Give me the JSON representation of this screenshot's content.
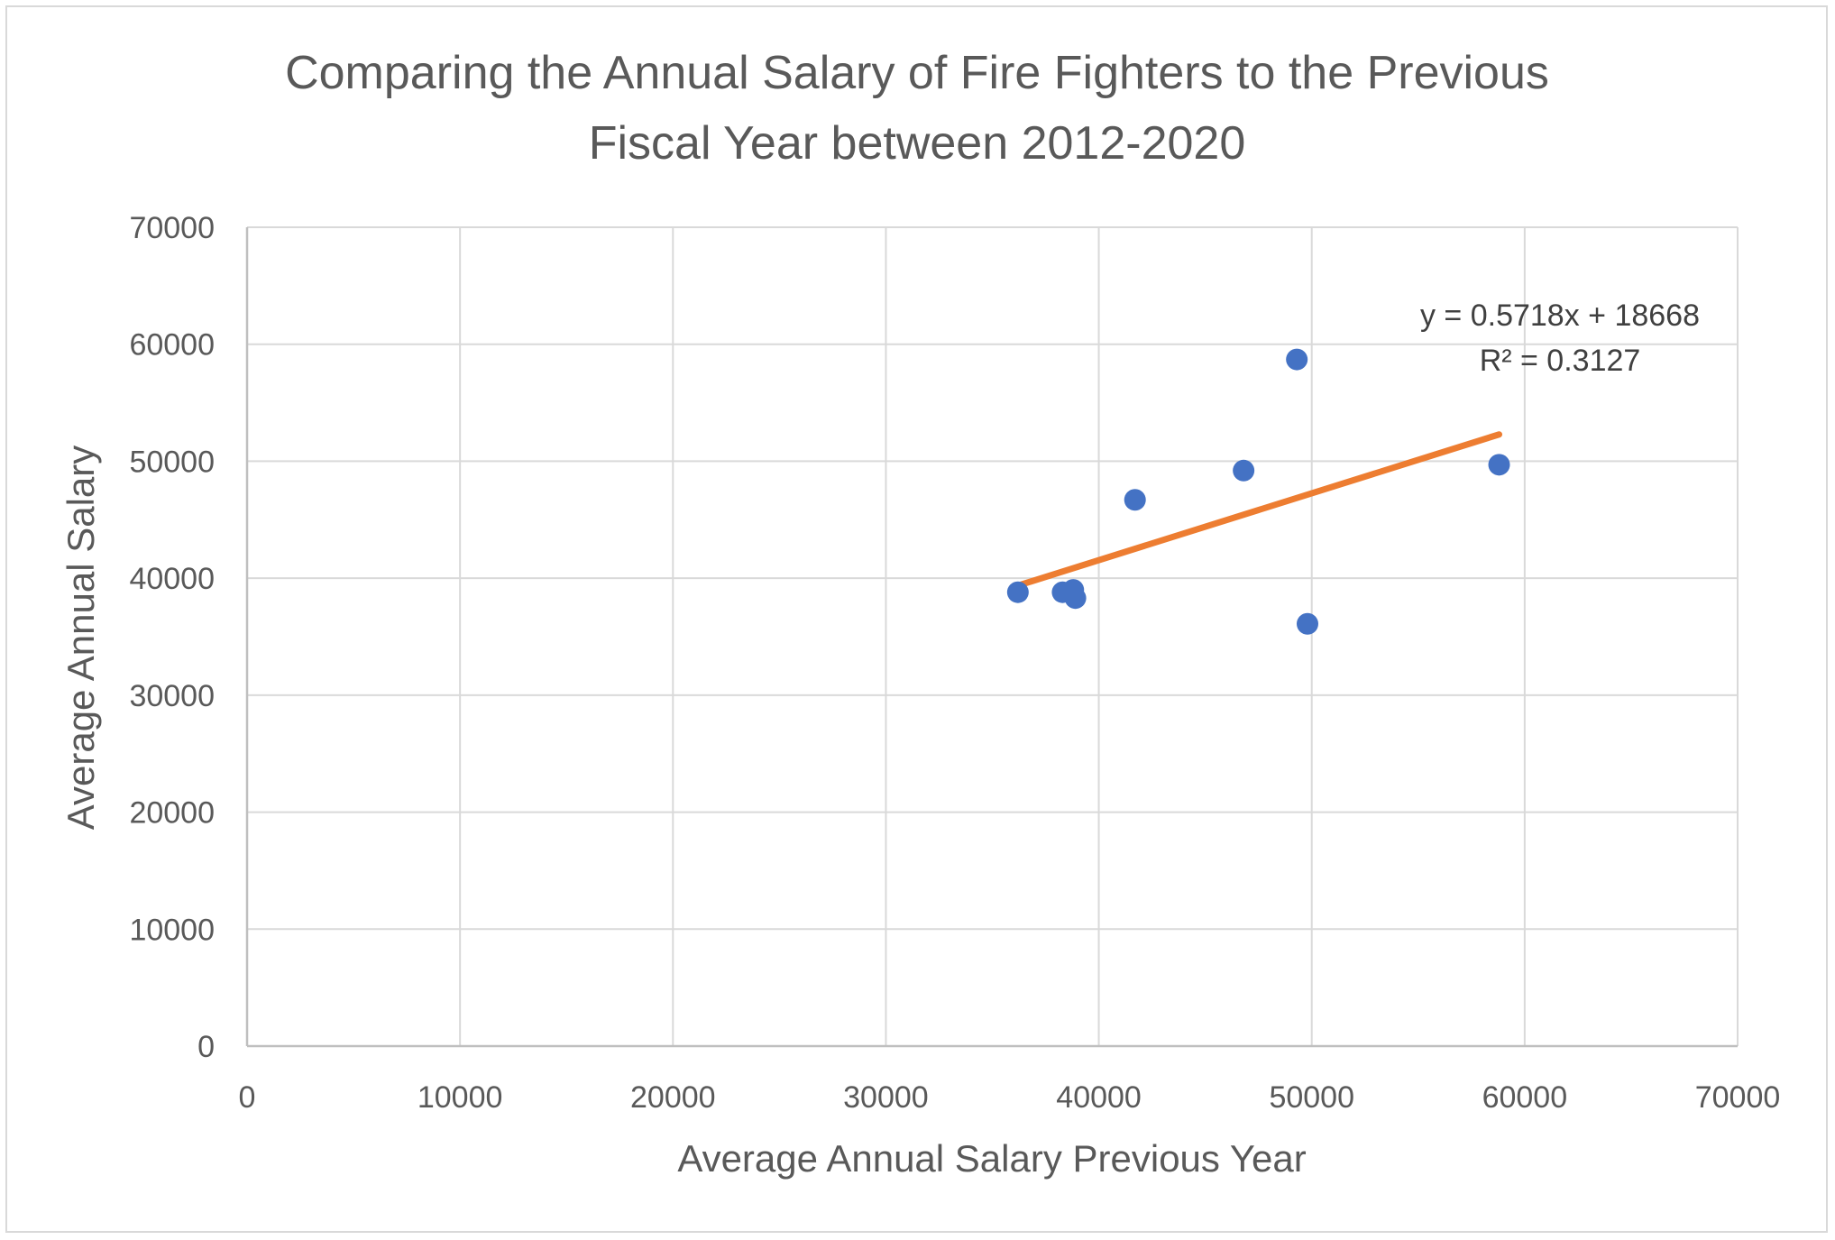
{
  "chart_data": {
    "type": "scatter",
    "title_lines": [
      "Comparing the Annual Salary of Fire Fighters to the Previous",
      "Fiscal Year between 2012-2020"
    ],
    "xlabel": "Average Annual Salary Previous Year",
    "ylabel": "Average Annual Salary",
    "xlim": [
      0,
      70000
    ],
    "ylim": [
      0,
      70000
    ],
    "x_ticks": [
      "0",
      "10000",
      "20000",
      "30000",
      "40000",
      "50000",
      "60000",
      "70000"
    ],
    "y_ticks": [
      "0",
      "10000",
      "20000",
      "30000",
      "40000",
      "50000",
      "60000",
      "70000"
    ],
    "grid": true,
    "legend": "none",
    "marker_color": "#4472c4",
    "trendline_color": "#ed7d31",
    "series": [
      {
        "x": [
          36200,
          38300,
          38800,
          38900,
          41700,
          46800,
          49300,
          49800,
          58800
        ],
        "y": [
          38800,
          38800,
          39000,
          38300,
          46700,
          49200,
          58700,
          36100,
          49700
        ]
      }
    ],
    "trendline": {
      "type": "linear",
      "slope": 0.5718,
      "intercept": 18668,
      "x_range": [
        36200,
        58800
      ],
      "equation_label": "y = 0.5718x + 18668",
      "r2_label": "R² = 0.3127"
    }
  }
}
